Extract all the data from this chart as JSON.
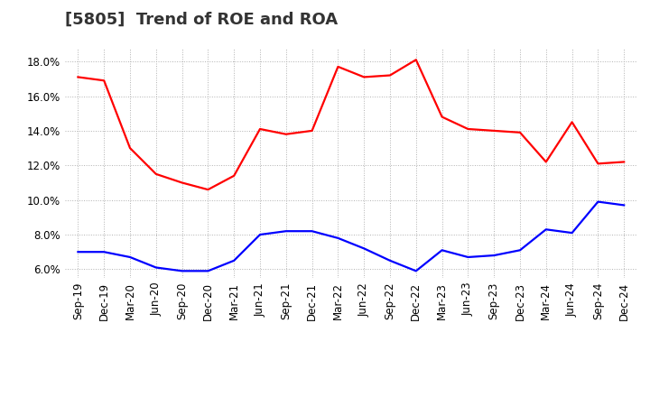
{
  "title": "[5805]  Trend of ROE and ROA",
  "x_labels": [
    "Sep-19",
    "Dec-19",
    "Mar-20",
    "Jun-20",
    "Sep-20",
    "Dec-20",
    "Mar-21",
    "Jun-21",
    "Sep-21",
    "Dec-21",
    "Mar-22",
    "Jun-22",
    "Sep-22",
    "Dec-22",
    "Mar-23",
    "Jun-23",
    "Sep-23",
    "Dec-23",
    "Mar-24",
    "Jun-24",
    "Sep-24",
    "Dec-24"
  ],
  "ROE": [
    17.1,
    16.9,
    13.0,
    11.5,
    11.0,
    10.6,
    11.4,
    14.1,
    13.8,
    14.0,
    17.7,
    17.1,
    17.2,
    18.1,
    14.8,
    14.1,
    14.0,
    13.9,
    12.2,
    14.5,
    12.1,
    12.2
  ],
  "ROA": [
    7.0,
    7.0,
    6.7,
    6.1,
    5.9,
    5.9,
    6.5,
    8.0,
    8.2,
    8.2,
    7.8,
    7.2,
    6.5,
    5.9,
    7.1,
    6.7,
    6.8,
    7.1,
    8.3,
    8.1,
    9.9,
    9.7
  ],
  "ROE_color": "#ff0000",
  "ROA_color": "#0000ff",
  "ylim": [
    5.5,
    18.8
  ],
  "yticks": [
    6.0,
    8.0,
    10.0,
    12.0,
    14.0,
    16.0,
    18.0
  ],
  "background_color": "#ffffff",
  "grid_color": "#b0b0b0",
  "title_fontsize": 13,
  "axis_fontsize": 8.5,
  "legend_fontsize": 10,
  "line_width": 1.6
}
